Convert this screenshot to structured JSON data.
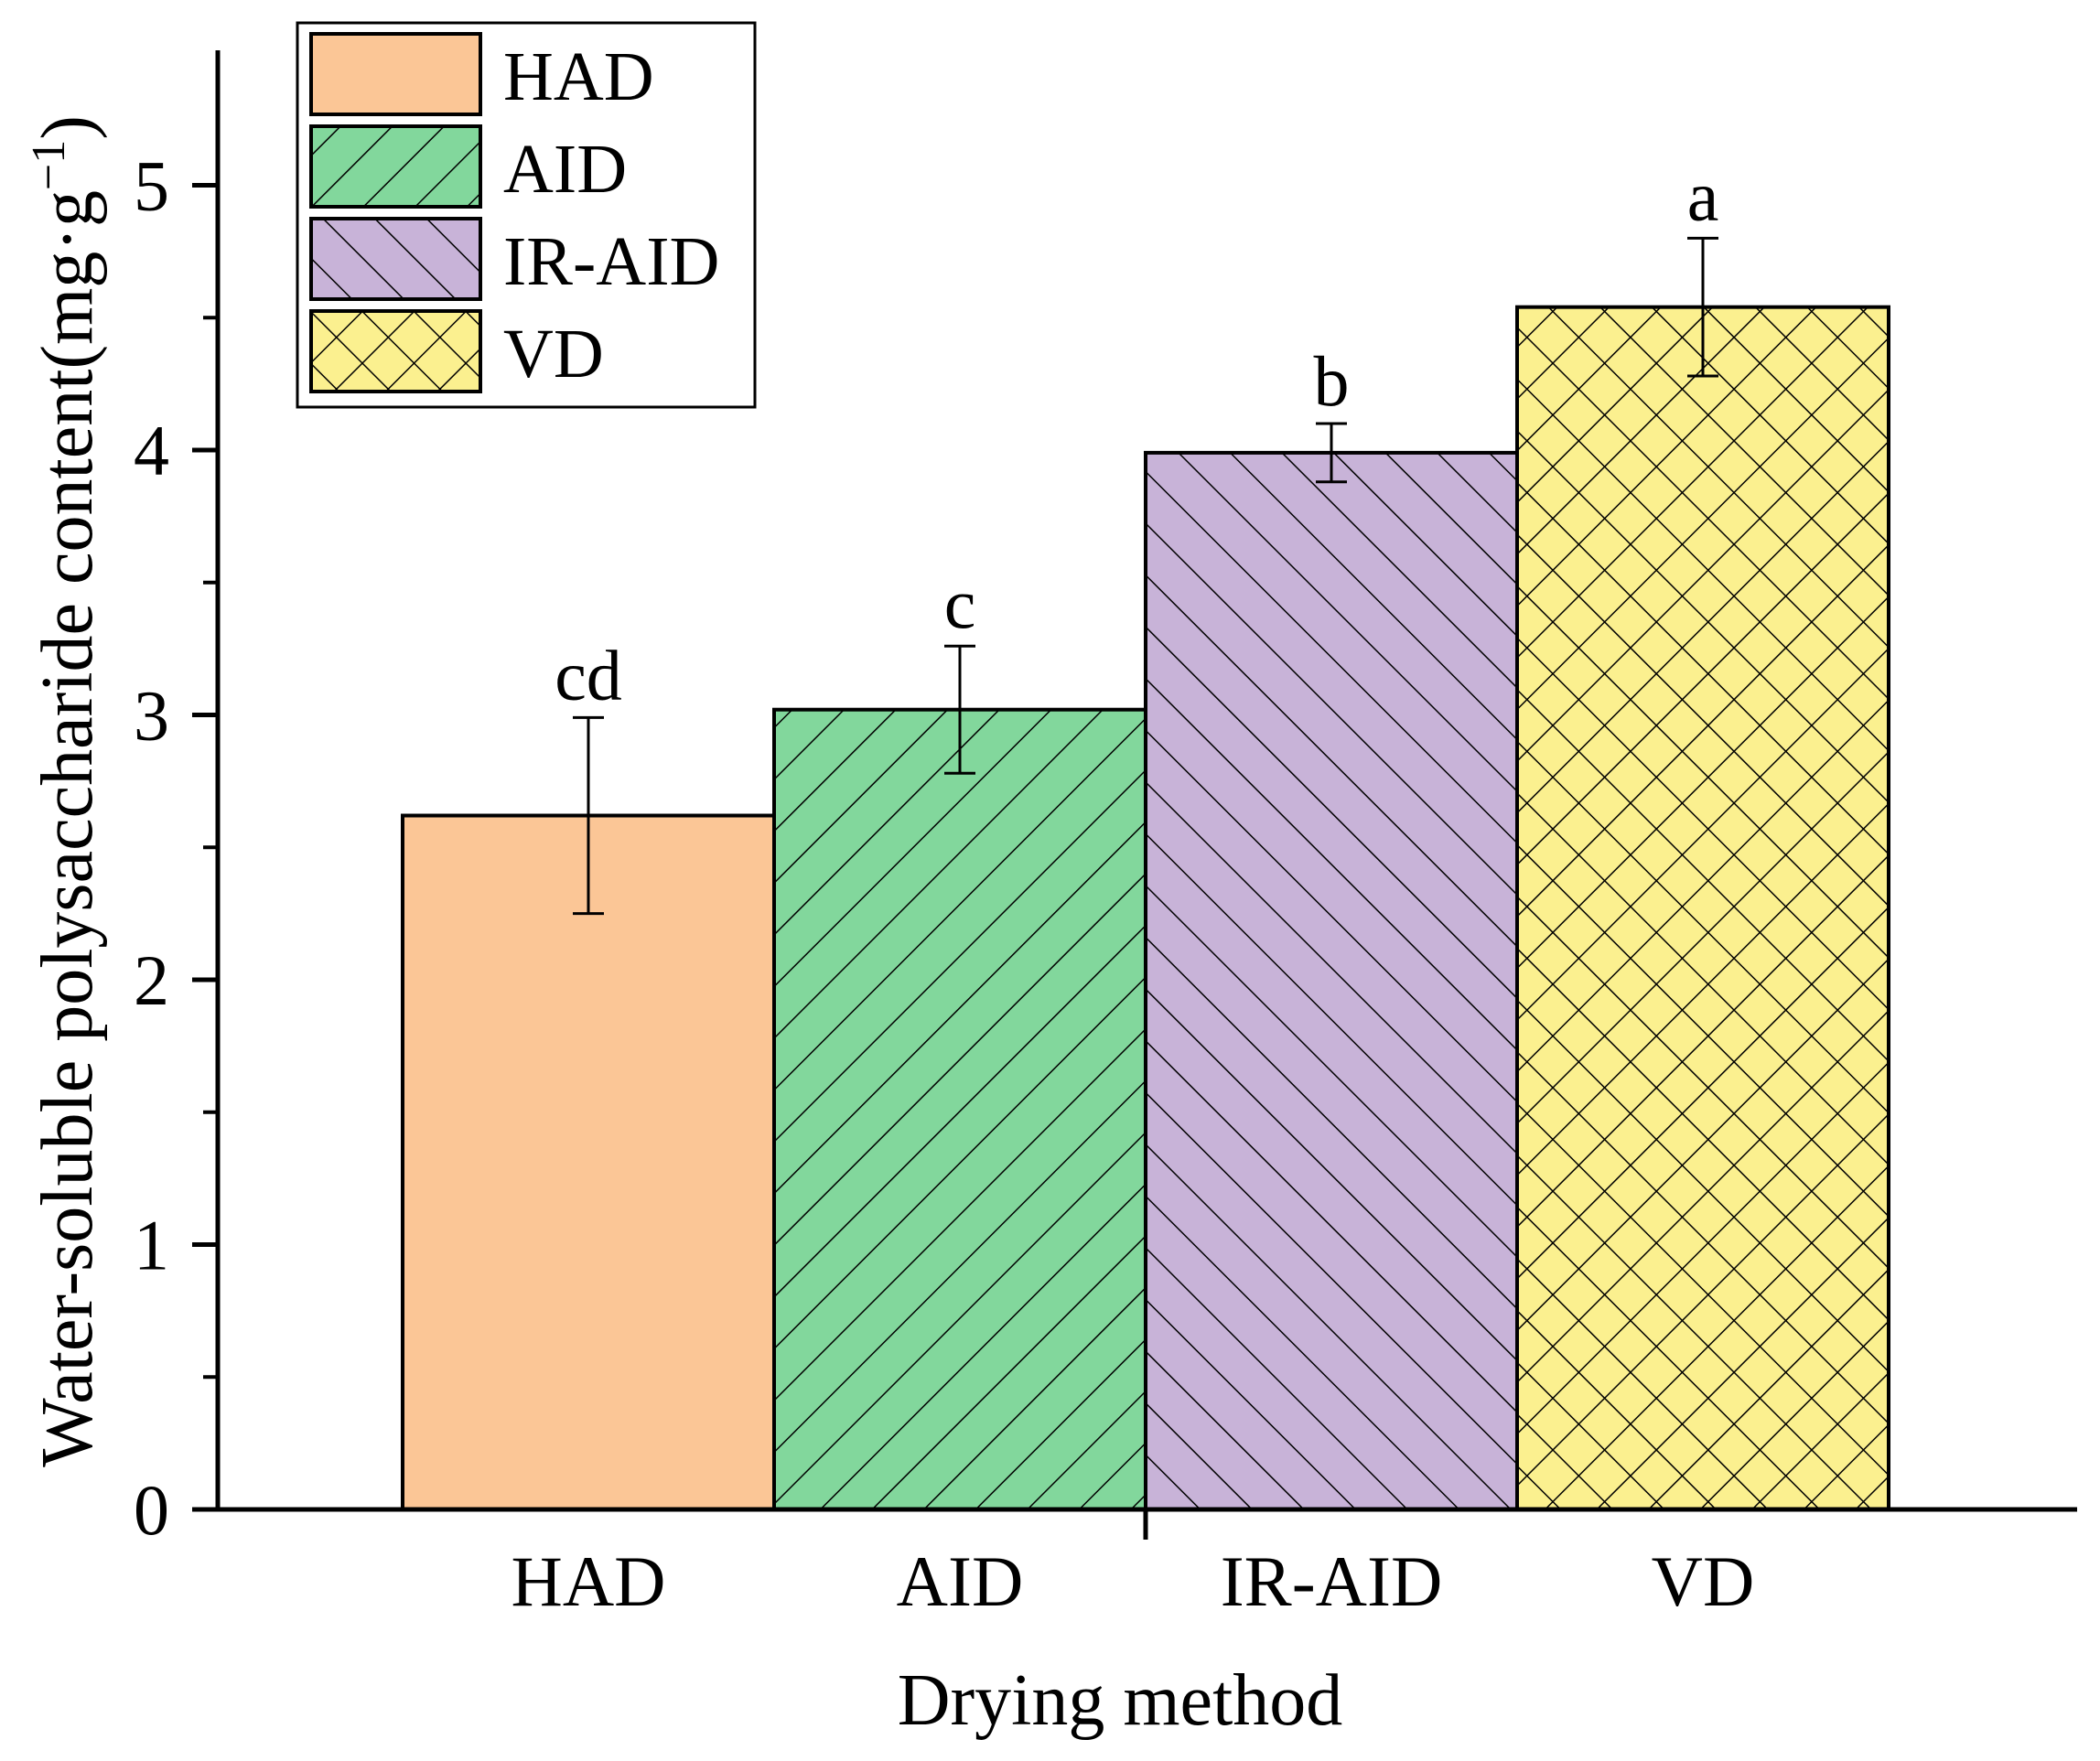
{
  "chart_data": {
    "type": "bar",
    "title": "",
    "xlabel": "Drying method",
    "ylabel": "Water-soluble polysaccharide content(mg·g",
    "ylabel_sup": "−1",
    "ylabel_close": ")",
    "categories": [
      "HAD",
      "AID",
      "IR-AID",
      "VD"
    ],
    "values": [
      2.62,
      3.02,
      3.99,
      4.54
    ],
    "errors": [
      0.37,
      0.24,
      0.11,
      0.26
    ],
    "significance": [
      "cd",
      "c",
      "b",
      "a"
    ],
    "ylim": [
      0,
      5.5
    ],
    "yticks": [
      0,
      1,
      2,
      3,
      4,
      5
    ],
    "grid": false,
    "legend": {
      "position": "top-left",
      "entries": [
        "HAD",
        "AID",
        "IR-AID",
        "VD"
      ]
    },
    "colors": [
      "#fbc696",
      "#82d79c",
      "#c8b3d8",
      "#fbf08f"
    ],
    "patterns": [
      "solid",
      "forward-diagonal",
      "backward-diagonal",
      "crosshatch"
    ]
  }
}
